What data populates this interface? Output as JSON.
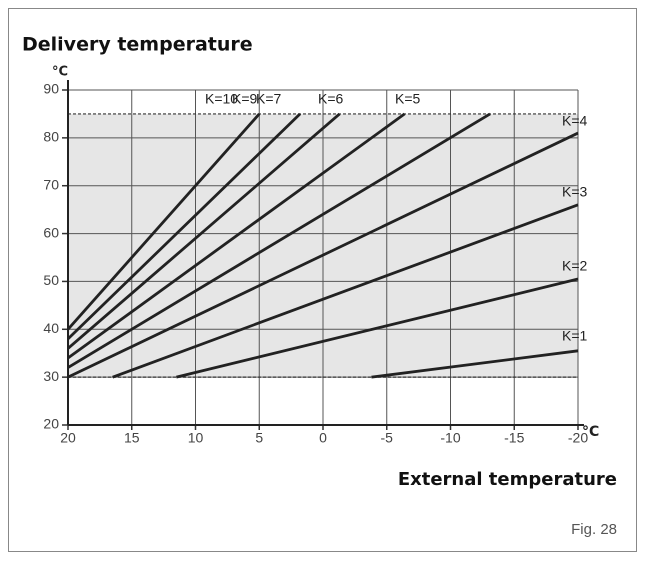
{
  "chart_data": {
    "type": "line",
    "title": "Delivery temperature",
    "y_unit": "°C",
    "x_unit": "°C",
    "x_label": "External temperature",
    "figure_label": "Fig. 28",
    "xlim": [
      20,
      -20
    ],
    "xticks": [
      20,
      15,
      10,
      5,
      0,
      -5,
      -10,
      -15,
      -20
    ],
    "ylim": [
      20,
      90
    ],
    "yticks": [
      20,
      30,
      40,
      50,
      60,
      70,
      80,
      90
    ],
    "grid": true,
    "band": {
      "from": 30,
      "to": 85,
      "color": "#e6e6e6"
    },
    "series": [
      {
        "name": "K=10",
        "color": "#222222",
        "x": [
          20,
          5
        ],
        "values": [
          40,
          85
        ]
      },
      {
        "name": "K=9",
        "color": "#222222",
        "x": [
          20,
          1.8
        ],
        "values": [
          38,
          85
        ]
      },
      {
        "name": "K=7",
        "color": "#222222",
        "x": [
          20,
          -1.3
        ],
        "values": [
          36,
          85
        ]
      },
      {
        "name": "K=6",
        "color": "#222222",
        "x": [
          20,
          -6.4
        ],
        "values": [
          34,
          85
        ]
      },
      {
        "name": "K=5",
        "color": "#222222",
        "x": [
          20,
          -13.1
        ],
        "values": [
          32,
          85
        ]
      },
      {
        "name": "K=4",
        "color": "#222222",
        "x": [
          20,
          -20
        ],
        "values": [
          30,
          81
        ]
      },
      {
        "name": "K=3",
        "color": "#222222",
        "x": [
          16.5,
          -20
        ],
        "values": [
          30,
          66
        ]
      },
      {
        "name": "K=2",
        "color": "#222222",
        "x": [
          11.5,
          -20
        ],
        "values": [
          30,
          50.5
        ]
      },
      {
        "name": "K=1",
        "color": "#222222",
        "x": [
          -3.8,
          -20
        ],
        "values": [
          30,
          35.5
        ]
      }
    ]
  }
}
